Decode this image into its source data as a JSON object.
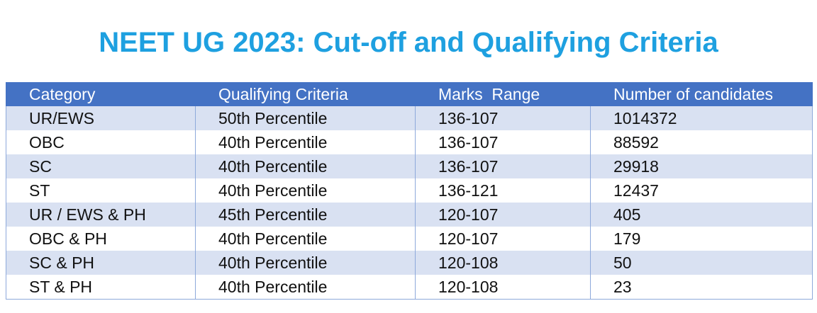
{
  "title": "NEET UG 2023: Cut-off and Qualifying Criteria",
  "table": {
    "header": [
      "Category",
      "Qualifying Criteria",
      "Marks  Range",
      "Number of candidates"
    ],
    "rows": [
      [
        "UR/EWS",
        "50th Percentile",
        "136-107",
        1014372
      ],
      [
        "OBC",
        "40th Percentile",
        "136-107",
        88592
      ],
      [
        "SC",
        "40th Percentile",
        "136-107",
        29918
      ],
      [
        "ST",
        "40th Percentile",
        "136-121",
        12437
      ],
      [
        "UR / EWS & PH",
        "45th Percentile",
        "120-107",
        405
      ],
      [
        "OBC & PH",
        "40th Percentile",
        "120-107",
        179
      ],
      [
        "SC & PH",
        "40th Percentile",
        "120-108",
        50
      ],
      [
        "ST & PH",
        "40th Percentile",
        "120-108",
        23
      ]
    ]
  }
}
